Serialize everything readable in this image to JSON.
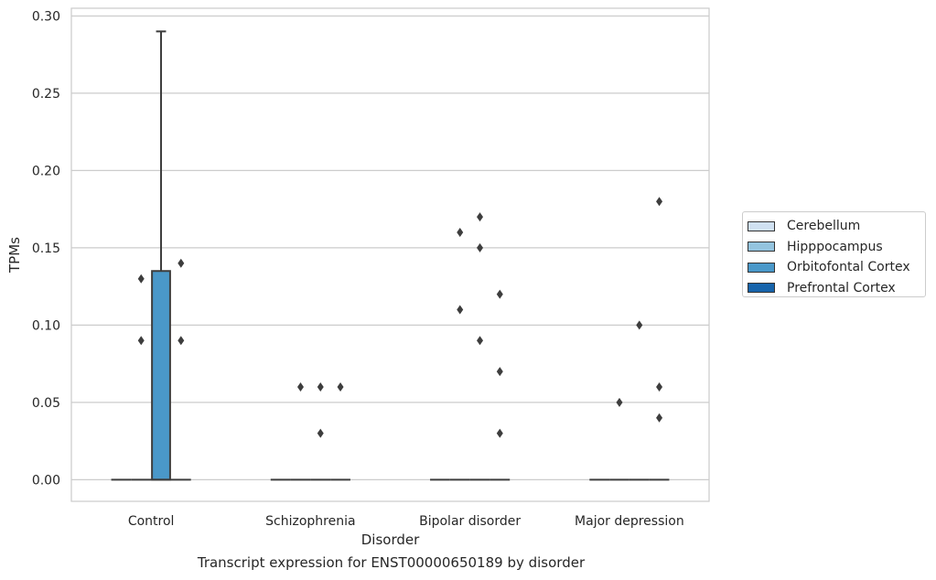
{
  "chart_data": {
    "type": "boxplot",
    "title": "",
    "caption": "Transcript expression for ENST00000650189 by disorder",
    "xlabel": "Disorder",
    "ylabel": "TPMs",
    "ylim": [
      -0.014,
      0.305
    ],
    "yticks": [
      "0.00",
      "0.05",
      "0.10",
      "0.15",
      "0.20",
      "0.25",
      "0.30"
    ],
    "ytick_values": [
      0,
      0.05,
      0.1,
      0.15,
      0.2,
      0.25,
      0.3
    ],
    "grid": "horizontal",
    "legend_position": "right",
    "categories": [
      "Control",
      "Schizophrenia",
      "Bipolar disorder",
      "Major depression"
    ],
    "series": [
      {
        "name": "Cerebellum",
        "color": "#d0e1f2",
        "boxes": [
          {
            "q1": 0,
            "median": 0,
            "q3": 0,
            "whisker_low": 0,
            "whisker_high": 0,
            "outliers": []
          },
          {
            "q1": 0,
            "median": 0,
            "q3": 0,
            "whisker_low": 0,
            "whisker_high": 0,
            "outliers": []
          },
          {
            "q1": 0,
            "median": 0,
            "q3": 0,
            "whisker_low": 0,
            "whisker_high": 0,
            "outliers": []
          },
          {
            "q1": 0,
            "median": 0,
            "q3": 0,
            "whisker_low": 0,
            "whisker_high": 0,
            "outliers": []
          }
        ]
      },
      {
        "name": "Hipppocampus",
        "color": "#94c4df",
        "boxes": [
          {
            "q1": 0,
            "median": 0,
            "q3": 0,
            "whisker_low": 0,
            "whisker_high": 0,
            "outliers": [
              0.13,
              0.09
            ]
          },
          {
            "q1": 0,
            "median": 0,
            "q3": 0,
            "whisker_low": 0,
            "whisker_high": 0,
            "outliers": [
              0.06
            ]
          },
          {
            "q1": 0,
            "median": 0,
            "q3": 0,
            "whisker_low": 0,
            "whisker_high": 0,
            "outliers": [
              0.16,
              0.11
            ]
          },
          {
            "q1": 0,
            "median": 0,
            "q3": 0,
            "whisker_low": 0,
            "whisker_high": 0,
            "outliers": [
              0.05
            ]
          }
        ]
      },
      {
        "name": "Orbitofontal Cortex",
        "color": "#4a98c9",
        "boxes": [
          {
            "q1": 0,
            "median": 0,
            "q3": 0.135,
            "whisker_low": 0,
            "whisker_high": 0.29,
            "outliers": []
          },
          {
            "q1": 0,
            "median": 0,
            "q3": 0,
            "whisker_low": 0,
            "whisker_high": 0,
            "outliers": [
              0.06,
              0.03
            ]
          },
          {
            "q1": 0,
            "median": 0,
            "q3": 0,
            "whisker_low": 0,
            "whisker_high": 0,
            "outliers": [
              0.15,
              0.09,
              0.17
            ]
          },
          {
            "q1": 0,
            "median": 0,
            "q3": 0,
            "whisker_low": 0,
            "whisker_high": 0,
            "outliers": [
              0.1
            ]
          }
        ]
      },
      {
        "name": "Prefrontal Cortex",
        "color": "#1764ab",
        "boxes": [
          {
            "q1": 0,
            "median": 0,
            "q3": 0,
            "whisker_low": 0,
            "whisker_high": 0,
            "outliers": [
              0.14,
              0.09
            ]
          },
          {
            "q1": 0,
            "median": 0,
            "q3": 0,
            "whisker_low": 0,
            "whisker_high": 0,
            "outliers": [
              0.06
            ]
          },
          {
            "q1": 0,
            "median": 0,
            "q3": 0,
            "whisker_low": 0,
            "whisker_high": 0,
            "outliers": [
              0.12,
              0.07,
              0.03
            ]
          },
          {
            "q1": 0,
            "median": 0,
            "q3": 0,
            "whisker_low": 0,
            "whisker_high": 0,
            "outliers": [
              0.06,
              0.04,
              0.18
            ]
          }
        ]
      }
    ]
  }
}
